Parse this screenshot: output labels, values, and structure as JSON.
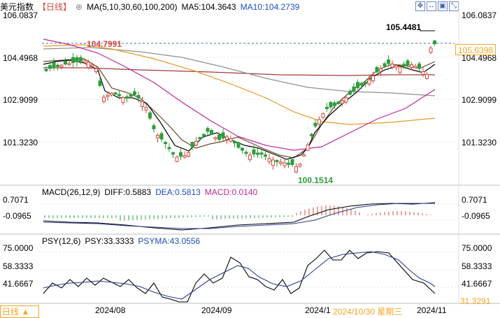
{
  "header": {
    "symbol": "美元指数",
    "period": "【日线】",
    "period_icon": "circle-plus-icon",
    "ma_params": "MA(5,10,30,60,100,200)",
    "ma5": "MA5:104.3643",
    "ma10": "MA10:104.2739"
  },
  "controls": [
    "crosshair-icon",
    "arrow-icon",
    "image-icon",
    "zoom-icon"
  ],
  "price_axis": {
    "right": [
      "106.0837",
      "104.4968",
      "102.9099",
      "101.3230"
    ],
    "left": [
      "106.0837",
      "104.4968",
      "102.9099",
      "101.3230"
    ],
    "current": "105.0398"
  },
  "annotations": {
    "high": "105.4481",
    "prev_high": "104.7991",
    "low": "100.1514"
  },
  "macd": {
    "title": "MACD(26,12,9)",
    "diff": "DIFF:0.5883",
    "dea": "DEA:0.5813",
    "macd": "MACD:0.0140",
    "axis": [
      "0.7071",
      "-0.0965"
    ]
  },
  "psy": {
    "title": "PSY(12,6)",
    "psy": "PSY:33.3333",
    "psyma": "PSYMA:43.0556",
    "axis": [
      "75.0000",
      "58.3333",
      "41.6667"
    ],
    "current": "31.3291"
  },
  "dates": [
    "2024/08",
    "2024/09",
    "2024/1",
    "2024/10/30 星期三",
    "2024/11"
  ],
  "footer_tag": "日线 ▲",
  "colors": {
    "up": "#d24b3e",
    "down": "#2e9c3c",
    "ma5": "#000000",
    "ma10": "#6b4a2a",
    "ma30": "#c0269b",
    "ma60": "#e69a2c",
    "ma100": "#8f8f8f",
    "ma200": "#a03a3a",
    "accent": "#f5a623"
  }
}
